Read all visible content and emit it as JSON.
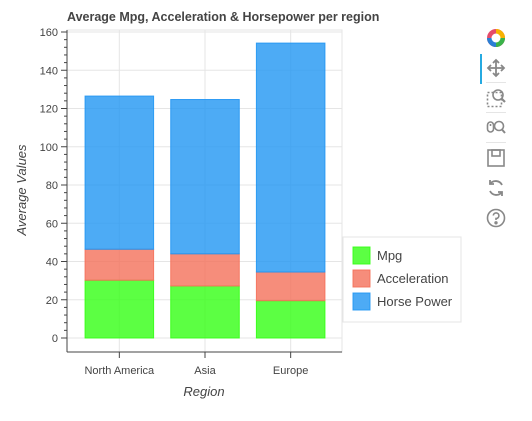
{
  "chart_data": {
    "type": "bar",
    "stacked": true,
    "title": "Average Mpg, Acceleration & Horsepower per region",
    "xlabel": "Region",
    "ylabel": "Average Values",
    "categories": [
      "North America",
      "Asia",
      "Europe"
    ],
    "ylim": [
      0,
      160
    ],
    "yticks": [
      0,
      20,
      40,
      60,
      80,
      100,
      120,
      140,
      160
    ],
    "grid": true,
    "legend_position": "right",
    "series": [
      {
        "name": "Mpg",
        "color": "#33ff14",
        "values": [
          30.2,
          27.2,
          19.5
        ]
      },
      {
        "name": "Acceleration",
        "color": "#f4715a",
        "values": [
          16.2,
          16.8,
          15.0
        ]
      },
      {
        "name": "Horse Power",
        "color": "#2196f3",
        "values": [
          80.1,
          80.7,
          119.7
        ]
      }
    ]
  },
  "toolbar": {
    "tools": [
      "bokeh-logo-icon",
      "pan-icon",
      "box-zoom-icon",
      "wheel-zoom-icon",
      "save-icon",
      "reset-icon",
      "help-icon"
    ]
  }
}
